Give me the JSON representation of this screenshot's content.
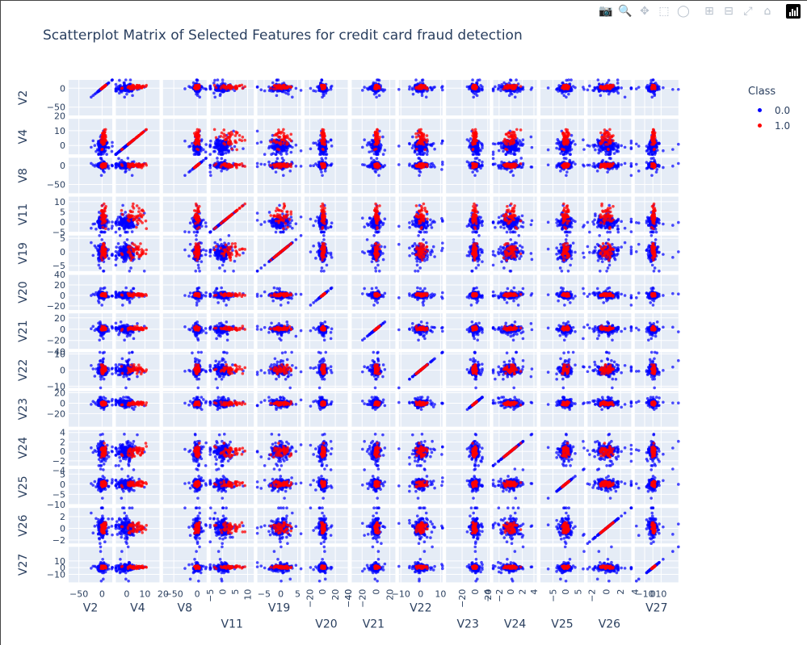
{
  "title": "Scatterplot Matrix of Selected Features for credit card fraud detection",
  "modebar": {
    "icons": [
      "camera-icon",
      "zoom-icon",
      "pan-icon",
      "box-select-icon",
      "lasso-icon",
      "zoom-in-icon",
      "zoom-out-icon",
      "autoscale-icon",
      "reset-axes-icon",
      "plotly-logo-icon"
    ],
    "glyphs": [
      "📷",
      "🔍",
      "✥",
      "⬚",
      "◯",
      "⊞",
      "⊟",
      "⤢",
      "⌂"
    ]
  },
  "legend": {
    "title": "Class",
    "items": [
      {
        "label": "0.0",
        "color": "#0000ff"
      },
      {
        "label": "1.0",
        "color": "#ff0000"
      }
    ]
  },
  "chart_data": {
    "type": "scatter",
    "title": "Scatterplot Matrix of Selected Features for credit card fraud detection",
    "variables": [
      "V2",
      "V4",
      "V8",
      "V11",
      "V19",
      "V20",
      "V21",
      "V22",
      "V23",
      "V24",
      "V25",
      "V26",
      "V27"
    ],
    "ranges": {
      "V2": [
        -72,
        22
      ],
      "V4": [
        -6,
        18
      ],
      "V8": [
        -73,
        20
      ],
      "V11": [
        -5,
        12.5
      ],
      "V19": [
        -7,
        6
      ],
      "V20": [
        -28,
        40
      ],
      "V21": [
        -35,
        28
      ],
      "V22": [
        -11,
        11
      ],
      "V23": [
        -45,
        23
      ],
      "V24": [
        -3,
        4.5
      ],
      "V25": [
        -10,
        7.5
      ],
      "V26": [
        -2.6,
        3.5
      ],
      "V27": [
        -22,
        31
      ]
    },
    "row_ticks": {
      "V2": [
        {
          "v": 0,
          "t": "0"
        },
        {
          "v": -50,
          "t": "−50"
        }
      ],
      "V4": [
        {
          "v": 20,
          "t": "20"
        },
        {
          "v": 10,
          "t": "10"
        },
        {
          "v": 0,
          "t": "0"
        }
      ],
      "V8": [
        {
          "v": 0,
          "t": "0"
        },
        {
          "v": -50,
          "t": "−50"
        }
      ],
      "V11": [
        {
          "v": 10,
          "t": "10"
        },
        {
          "v": 5,
          "t": "5"
        },
        {
          "v": 0,
          "t": "0"
        },
        {
          "v": -5,
          "t": "−5"
        }
      ],
      "V19": [
        {
          "v": 5,
          "t": "5"
        },
        {
          "v": 0,
          "t": "0"
        },
        {
          "v": -5,
          "t": "−5"
        }
      ],
      "V20": [
        {
          "v": 40,
          "t": "40"
        },
        {
          "v": 20,
          "t": "20"
        },
        {
          "v": 0,
          "t": "0"
        },
        {
          "v": -20,
          "t": "−20"
        }
      ],
      "V21": [
        {
          "v": 20,
          "t": "20"
        },
        {
          "v": 0,
          "t": "0"
        },
        {
          "v": -20,
          "t": "−20"
        },
        {
          "v": -40,
          "t": "−40"
        }
      ],
      "V22": [
        {
          "v": 10,
          "t": "10"
        },
        {
          "v": 0,
          "t": "0"
        },
        {
          "v": -10,
          "t": "−10"
        }
      ],
      "V23": [
        {
          "v": 20,
          "t": "20"
        },
        {
          "v": 0,
          "t": "0"
        },
        {
          "v": -20,
          "t": "−20"
        }
      ],
      "V24": [
        {
          "v": 4,
          "t": "4"
        },
        {
          "v": 2,
          "t": "2"
        },
        {
          "v": 0,
          "t": "0"
        },
        {
          "v": -2,
          "t": "−2"
        },
        {
          "v": -4,
          "t": "−4"
        }
      ],
      "V25": [
        {
          "v": 5,
          "t": "5"
        },
        {
          "v": 0,
          "t": "0"
        },
        {
          "v": -5,
          "t": "−5"
        },
        {
          "v": -10,
          "t": "−10"
        }
      ],
      "V26": [
        {
          "v": 2,
          "t": "2"
        },
        {
          "v": 0,
          "t": "0"
        },
        {
          "v": -2,
          "t": "−2"
        }
      ],
      "V27": [
        {
          "v": 10,
          "t": "10"
        },
        {
          "v": 0,
          "t": "0"
        },
        {
          "v": -10,
          "t": "−10"
        }
      ]
    },
    "col_ticks": {
      "V2": {
        "rot": false,
        "ticks": [
          {
            "v": -50,
            "t": "−50"
          },
          {
            "v": 0,
            "t": "0"
          }
        ]
      },
      "V4": {
        "rot": false,
        "ticks": [
          {
            "v": 0,
            "t": "0"
          },
          {
            "v": 10,
            "t": "10"
          },
          {
            "v": 20,
            "t": "20"
          }
        ]
      },
      "V8": {
        "rot": false,
        "ticks": [
          {
            "v": -50,
            "t": "−50"
          },
          {
            "v": 0,
            "t": "0"
          }
        ]
      },
      "V11": {
        "rot": true,
        "ticks": [
          {
            "v": -5,
            "t": "−5"
          },
          {
            "v": 0,
            "t": "0"
          },
          {
            "v": 5,
            "t": "5"
          },
          {
            "v": 10,
            "t": "10"
          }
        ]
      },
      "V19": {
        "rot": false,
        "ticks": [
          {
            "v": -5,
            "t": "−5"
          },
          {
            "v": 0,
            "t": "0"
          },
          {
            "v": 5,
            "t": "5"
          }
        ]
      },
      "V20": {
        "rot": true,
        "ticks": [
          {
            "v": -20,
            "t": "−20"
          },
          {
            "v": 0,
            "t": "0"
          },
          {
            "v": 20,
            "t": "20"
          },
          {
            "v": 40,
            "t": "40"
          }
        ]
      },
      "V21": {
        "rot": true,
        "ticks": [
          {
            "v": -40,
            "t": "−40"
          },
          {
            "v": -20,
            "t": "−20"
          },
          {
            "v": 0,
            "t": "0"
          },
          {
            "v": 20,
            "t": "20"
          }
        ]
      },
      "V22": {
        "rot": false,
        "ticks": [
          {
            "v": -10,
            "t": "−10"
          },
          {
            "v": 0,
            "t": "0"
          },
          {
            "v": 10,
            "t": "10"
          }
        ]
      },
      "V23": {
        "rot": true,
        "ticks": [
          {
            "v": -20,
            "t": "−20"
          },
          {
            "v": 0,
            "t": "0"
          },
          {
            "v": 20,
            "t": "20"
          }
        ]
      },
      "V24": {
        "rot": true,
        "ticks": [
          {
            "v": -4,
            "t": "−4"
          },
          {
            "v": -2,
            "t": "−2"
          },
          {
            "v": 0,
            "t": "0"
          },
          {
            "v": 2,
            "t": "2"
          },
          {
            "v": 4,
            "t": "4"
          }
        ]
      },
      "V25": {
        "rot": true,
        "ticks": [
          {
            "v": -5,
            "t": "−5"
          },
          {
            "v": 0,
            "t": "0"
          },
          {
            "v": 5,
            "t": "5"
          }
        ]
      },
      "V26": {
        "rot": true,
        "ticks": [
          {
            "v": -2,
            "t": "−2"
          },
          {
            "v": 0,
            "t": "0"
          },
          {
            "v": 2,
            "t": "2"
          },
          {
            "v": 4,
            "t": "4"
          }
        ]
      },
      "V27": {
        "rot": false,
        "ticks": [
          {
            "v": -10,
            "t": "−10"
          },
          {
            "v": 0,
            "t": "0"
          },
          {
            "v": 10,
            "t": "10"
          }
        ]
      }
    },
    "series": [
      {
        "name": "0.0",
        "color": "#0000ff"
      },
      {
        "name": "1.0",
        "color": "#ff0000"
      }
    ],
    "grid": true,
    "legend_position": "top-right",
    "background": "#e5ecf6"
  }
}
